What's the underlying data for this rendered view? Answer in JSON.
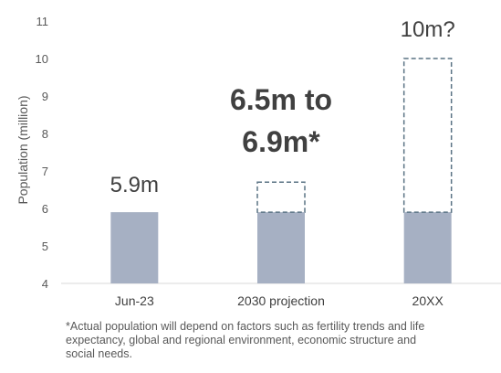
{
  "chart_data": {
    "type": "bar",
    "categories": [
      "Jun-23",
      "2030 projection",
      "20XX"
    ],
    "series": [
      {
        "values": [
          5.9,
          5.9,
          5.9
        ]
      },
      {
        "values": [
          5.9,
          6.7,
          10
        ],
        "style": "dashed outline"
      }
    ],
    "ylabel": "Population (million)",
    "xlabel": "",
    "ylim": [
      4,
      11
    ],
    "yticks": [
      4,
      5,
      6,
      7,
      8,
      9,
      10,
      11
    ],
    "grid": false,
    "annotations": [
      "5.9m",
      "6.5m to",
      "6.9m*",
      "10m?"
    ],
    "colors": {
      "bar_fill": "#a6b0c3",
      "dashed_outline": "#5a7384",
      "text": "#404040",
      "axis": "#d9d9d9"
    }
  },
  "footnote": {
    "line1": "*Actual population will depend on factors such as fertility trends and life",
    "line2": "expectancy, global and regional environment, economic structure and",
    "line3": "social needs."
  }
}
